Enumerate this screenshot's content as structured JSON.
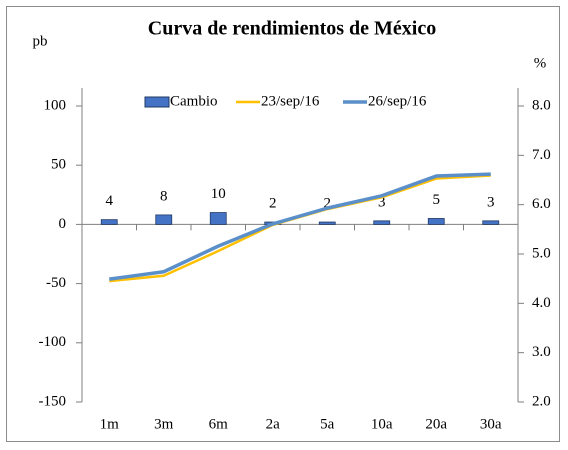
{
  "chart_data": {
    "type": "bar-line",
    "title": "Curva de rendimientos de México",
    "y_label": "pb",
    "y2_label": "%",
    "categories": [
      "1m",
      "3m",
      "6m",
      "2a",
      "5a",
      "10a",
      "20a",
      "30a"
    ],
    "series": [
      {
        "name": "Cambio",
        "type": "bar",
        "color": "#4472c4",
        "values": [
          4,
          8,
          10,
          2,
          2,
          3,
          5,
          3
        ]
      },
      {
        "name": "23/sep/16",
        "type": "line",
        "axis": "y2",
        "color": "#ffc000",
        "values": [
          4.45,
          4.56,
          5.06,
          5.59,
          5.91,
          6.15,
          6.53,
          6.59
        ]
      },
      {
        "name": "26/sep/16",
        "type": "line",
        "axis": "y2",
        "color": "#5b8fc9",
        "values": [
          4.49,
          4.64,
          5.16,
          5.61,
          5.93,
          6.18,
          6.58,
          6.62
        ]
      }
    ],
    "ylim": [
      -150,
      100
    ],
    "yticks": [
      -150,
      -100,
      -50,
      0,
      50,
      100
    ],
    "y2lim": [
      2,
      8
    ],
    "y2ticks": [
      {
        "value": 2,
        "label": "2.0"
      },
      {
        "value": 3,
        "label": "3.0"
      },
      {
        "value": 4,
        "label": "4.0"
      },
      {
        "value": 5,
        "label": "5.0"
      },
      {
        "value": 6,
        "label": "6.0"
      },
      {
        "value": 7,
        "label": "7.0"
      },
      {
        "value": 8,
        "label": "8.0"
      }
    ],
    "legend": "top",
    "grid": false
  }
}
